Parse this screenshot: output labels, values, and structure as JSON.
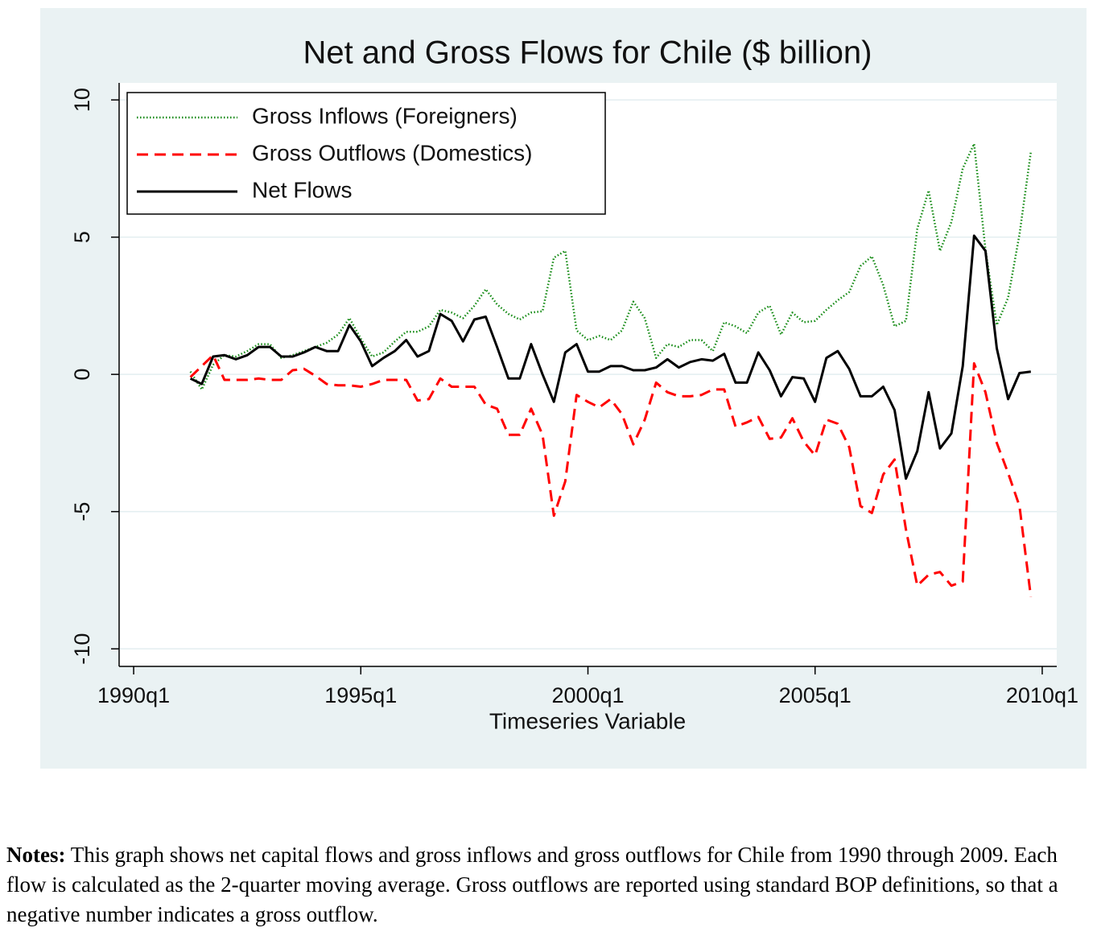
{
  "chart_data": {
    "type": "line",
    "title": "Net and Gross Flows for Chile ($ billion)",
    "x_label": "Timeseries Variable",
    "x": [
      "1991q2",
      "1991q3",
      "1991q4",
      "1992q1",
      "1992q2",
      "1992q3",
      "1992q4",
      "1993q1",
      "1993q2",
      "1993q3",
      "1993q4",
      "1994q1",
      "1994q2",
      "1994q3",
      "1994q4",
      "1995q1",
      "1995q2",
      "1995q3",
      "1995q4",
      "1996q1",
      "1996q2",
      "1996q3",
      "1996q4",
      "1997q1",
      "1997q2",
      "1997q3",
      "1997q4",
      "1998q1",
      "1998q2",
      "1998q3",
      "1998q4",
      "1999q1",
      "1999q2",
      "1999q3",
      "1999q4",
      "2000q1",
      "2000q2",
      "2000q3",
      "2000q4",
      "2001q1",
      "2001q2",
      "2001q3",
      "2001q4",
      "2002q1",
      "2002q2",
      "2002q3",
      "2002q4",
      "2003q1",
      "2003q2",
      "2003q3",
      "2003q4",
      "2004q1",
      "2004q2",
      "2004q3",
      "2004q4",
      "2005q1",
      "2005q2",
      "2005q3",
      "2005q4",
      "2006q1",
      "2006q2",
      "2006q3",
      "2006q4",
      "2007q1",
      "2007q2",
      "2007q3",
      "2007q4",
      "2008q1",
      "2008q2",
      "2008q3",
      "2008q4",
      "2009q1",
      "2009q2",
      "2009q3",
      "2009q4"
    ],
    "series": [
      {
        "name": "Gross Inflows (Foreigners)",
        "color": "#138a13",
        "style": "dotted",
        "values": [
          0.1,
          -0.55,
          0.35,
          0.7,
          0.65,
          0.85,
          1.1,
          1.1,
          0.6,
          0.7,
          0.85,
          1.0,
          1.15,
          1.45,
          2.05,
          1.3,
          0.65,
          0.8,
          1.2,
          1.55,
          1.55,
          1.75,
          2.35,
          2.25,
          2.05,
          2.5,
          3.1,
          2.55,
          2.2,
          2.0,
          2.25,
          2.3,
          4.25,
          4.5,
          1.6,
          1.25,
          1.4,
          1.25,
          1.6,
          2.65,
          2.05,
          0.6,
          1.1,
          1.0,
          1.25,
          1.25,
          0.85,
          1.9,
          1.75,
          1.5,
          2.25,
          2.5,
          1.45,
          2.25,
          1.9,
          1.95,
          2.35,
          2.7,
          3.0,
          3.95,
          4.3,
          3.25,
          1.75,
          1.95,
          5.3,
          6.7,
          4.5,
          5.55,
          7.5,
          8.4,
          4.55,
          1.8,
          2.8,
          5.1,
          8.1
        ]
      },
      {
        "name": "Gross Outflows (Domestics)",
        "color": "#ff0000",
        "style": "dashed",
        "values": [
          -0.1,
          0.3,
          0.7,
          -0.2,
          -0.2,
          -0.2,
          -0.15,
          -0.2,
          -0.2,
          0.15,
          0.2,
          -0.05,
          -0.35,
          -0.4,
          -0.4,
          -0.45,
          -0.35,
          -0.2,
          -0.2,
          -0.2,
          -0.95,
          -0.9,
          -0.15,
          -0.45,
          -0.45,
          -0.45,
          -1.1,
          -1.25,
          -2.2,
          -2.2,
          -1.25,
          -2.2,
          -5.15,
          -3.9,
          -0.75,
          -1.0,
          -1.2,
          -0.9,
          -1.45,
          -2.55,
          -1.65,
          -0.3,
          -0.65,
          -0.8,
          -0.8,
          -0.75,
          -0.55,
          -0.55,
          -1.9,
          -1.75,
          -1.55,
          -2.35,
          -2.3,
          -1.6,
          -2.45,
          -2.95,
          -1.65,
          -1.8,
          -2.65,
          -4.8,
          -5.05,
          -3.65,
          -3.1,
          -5.65,
          -7.7,
          -7.3,
          -7.2,
          -7.7,
          -7.55,
          0.4,
          -0.65,
          -2.5,
          -3.6,
          -4.8,
          -8.1
        ]
      },
      {
        "name": "Net Flows",
        "color": "#000000",
        "style": "solid",
        "values": [
          -0.15,
          -0.35,
          0.65,
          0.7,
          0.55,
          0.7,
          1.0,
          1.0,
          0.65,
          0.65,
          0.8,
          1.0,
          0.85,
          0.85,
          1.8,
          1.2,
          0.3,
          0.6,
          0.85,
          1.25,
          0.65,
          0.85,
          2.2,
          1.95,
          1.2,
          2.0,
          2.1,
          1.0,
          -0.15,
          -0.15,
          1.1,
          0.0,
          -1.0,
          0.8,
          1.1,
          0.1,
          0.1,
          0.3,
          0.3,
          0.15,
          0.15,
          0.25,
          0.55,
          0.25,
          0.45,
          0.55,
          0.5,
          0.75,
          -0.3,
          -0.3,
          0.8,
          0.15,
          -0.8,
          -0.1,
          -0.15,
          -1.0,
          0.6,
          0.85,
          0.2,
          -0.8,
          -0.8,
          -0.45,
          -1.3,
          -3.8,
          -2.8,
          -0.65,
          -2.7,
          -2.15,
          0.3,
          5.05,
          4.5,
          0.95,
          -0.9,
          0.05,
          0.1
        ]
      }
    ],
    "xlim": [
      1989.68,
      2010.32
    ],
    "xticks": [
      {
        "value": 1990,
        "label": "1990q1"
      },
      {
        "value": 1995,
        "label": "1995q1"
      },
      {
        "value": 2000,
        "label": "2000q1"
      },
      {
        "value": 2005,
        "label": "2005q1"
      },
      {
        "value": 2010,
        "label": "2010q1"
      }
    ],
    "ylim": [
      -10.64,
      10.62
    ],
    "yticks": [
      -10,
      -5,
      0,
      5,
      10
    ],
    "grid": true,
    "legend": "top-left"
  },
  "notes": {
    "label": "Notes:",
    "text": "This graph shows net capital flows and gross inflows and gross outflows for Chile from 1990 through 2009. Each flow is calculated as the 2-quarter moving average. Gross outflows are reported using standard BOP definitions, so that a negative number indicates a gross outflow."
  }
}
